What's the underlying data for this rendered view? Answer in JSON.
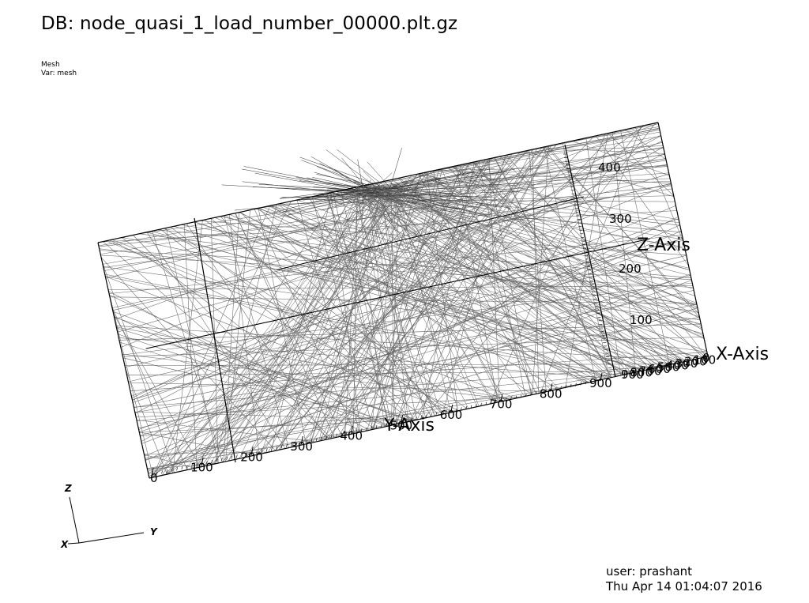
{
  "header": {
    "db_title": "DB: node_quasi_1_load_number_00000.plt.gz"
  },
  "plot": {
    "type": "Mesh",
    "var": "Var: mesh",
    "mesh_color": "#666666"
  },
  "axes": {
    "x_title": "X-Axis",
    "y_title": "Y-Axis",
    "z_title": "Z-Axis",
    "y_ticks": [
      "0",
      "100",
      "200",
      "300",
      "400",
      "500",
      "600",
      "700",
      "800",
      "900"
    ],
    "z_ticks": [
      "100",
      "200",
      "300",
      "400"
    ],
    "x_ticks": [
      "900",
      "800",
      "700",
      "600",
      "500",
      "400",
      "300",
      "200",
      "100",
      "0"
    ]
  },
  "triad": {
    "x": "X",
    "y": "Y",
    "z": "Z"
  },
  "footer": {
    "user": "user: prashant",
    "date": "Thu Apr 14 01:04:07 2016"
  }
}
